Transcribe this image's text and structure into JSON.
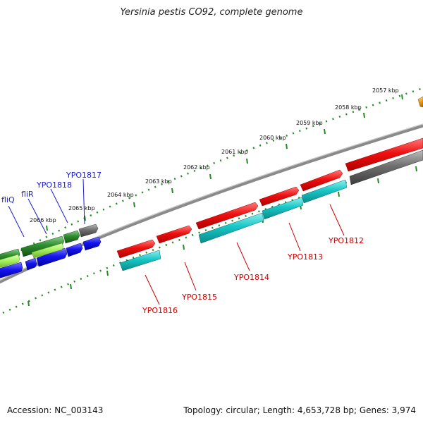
{
  "title": "Yersinia pestis CO92, complete genome",
  "footer": {
    "accession": "Accession: NC_003143",
    "summary": "Topology: circular; Length: 4,653,728 bp; Genes: 3,974"
  },
  "colors": {
    "ruler": "#228b22",
    "backbone": "#777777",
    "gene_red": "#e81010",
    "gene_cyan": "#18c6c6",
    "gene_blue": "#1a1ae6",
    "gene_green": "#2e8b2e",
    "gene_lightgreen": "#9ff060",
    "gene_gray": "#6e6e6e",
    "gene_orange": "#f0a020",
    "label_red": "#cc0000",
    "label_blue": "#1a1ad0"
  },
  "ruler_labels": [
    "2057 kbp",
    "2058 kbp",
    "2059 kbp",
    "2060 kbp",
    "2061 kbp",
    "2062 kbp",
    "2063 kbp",
    "2064 kbp",
    "2065 kbp",
    "2066 kbp"
  ],
  "gene_labels_blue": [
    "fliQ",
    "fliR",
    "YPO1818",
    "YPO1817"
  ],
  "gene_labels_red": [
    "YPO1816",
    "YPO1815",
    "YPO1814",
    "YPO1813",
    "YPO1812"
  ]
}
